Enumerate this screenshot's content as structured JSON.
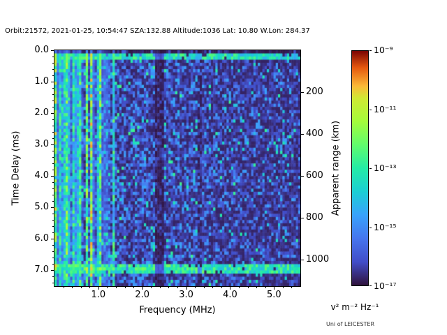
{
  "header": {
    "title": "Orbit:21572, 2021-01-25, 10:54:47 SZA:132.88 Altitude:1036 Lat: 10.80 W.Lon: 284.37"
  },
  "footer": {
    "credit": "Uni of LEICESTER"
  },
  "chart_data": {
    "type": "heatmap",
    "title": "Orbit:21572, 2021-01-25, 10:54:47 SZA:132.88 Altitude:1036 Lat: 10.80 W.Lon: 284.37",
    "xlabel": "Frequency (MHz)",
    "ylabel": "Time Delay (ms)",
    "ylabel_right": "Apparent range (km)",
    "x_range": [
      0.0,
      5.6
    ],
    "y_range": [
      0.0,
      7.5
    ],
    "x_ticks": [
      1.0,
      2.0,
      3.0,
      4.0,
      5.0
    ],
    "x_tick_labels": [
      "1.0",
      "2.0",
      "3.0",
      "4.0",
      "5.0"
    ],
    "y_ticks": [
      0.0,
      1.0,
      2.0,
      3.0,
      4.0,
      5.0,
      6.0,
      7.0
    ],
    "y_tick_labels": [
      "0.0",
      "1.0",
      "2.0",
      "3.0",
      "4.0",
      "5.0",
      "6.0",
      "7.0"
    ],
    "right_ticks_km": [
      200,
      400,
      600,
      800,
      1000
    ],
    "right_tick_labels": [
      "200",
      "400",
      "600",
      "800",
      "1000"
    ],
    "km_per_ms": 150,
    "minor_tick_step_x": 0.2,
    "minor_tick_step_y": 0.2,
    "grid": false,
    "legend": "none",
    "colorbar": {
      "label": "v² m⁻² Hz⁻¹",
      "scale": "log",
      "value_range_exponents": [
        -17,
        -9
      ],
      "tick_labels": [
        "10⁻⁹",
        "10⁻¹¹",
        "10⁻¹³",
        "10⁻¹⁵",
        "10⁻¹⁷"
      ],
      "tick_exponents": [
        -9,
        -11,
        -13,
        -15,
        -17
      ],
      "colormap": "turbo",
      "gradient_stops": [
        {
          "t": 0.0,
          "color": "#30123b"
        },
        {
          "t": 0.1,
          "color": "#414dc8"
        },
        {
          "t": 0.2,
          "color": "#4675ed"
        },
        {
          "t": 0.3,
          "color": "#39a2fc"
        },
        {
          "t": 0.4,
          "color": "#1bcfd4"
        },
        {
          "t": 0.5,
          "color": "#24eca6"
        },
        {
          "t": 0.6,
          "color": "#61fc6c"
        },
        {
          "t": 0.7,
          "color": "#a4fc3b"
        },
        {
          "t": 0.8,
          "color": "#d1e834"
        },
        {
          "t": 0.85,
          "color": "#fbb938"
        },
        {
          "t": 0.93,
          "color": "#e4570e"
        },
        {
          "t": 1.0,
          "color": "#7a0403"
        }
      ]
    },
    "features": {
      "bright_horizontal_band_ms": 0.2,
      "bright_horizontal_band2_ms": 6.95,
      "vertical_striping_below_mhz": 1.38,
      "dark_vertical_bands_mhz": [
        2.4,
        3.3
      ],
      "background": "sparse blue noise speckles on dark navy, density decreasing with frequency"
    }
  }
}
